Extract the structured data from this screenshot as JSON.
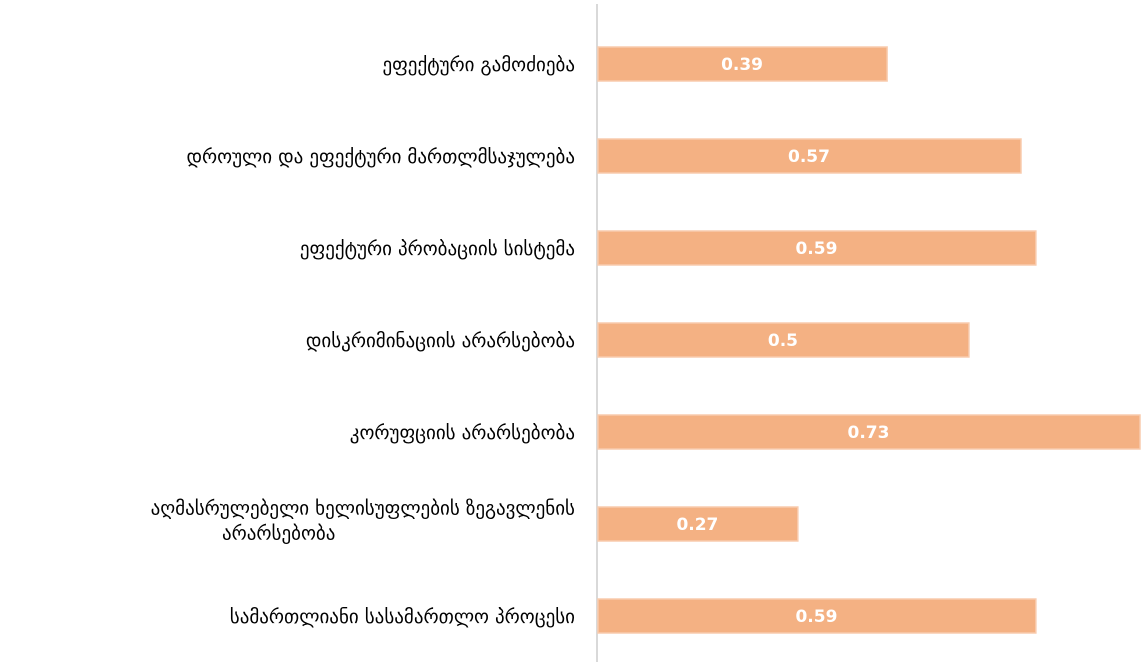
{
  "chart_data": {
    "type": "bar",
    "orientation": "horizontal",
    "categories": [
      "ეფექტური გამოძიება",
      "დროული და ეფექტური მართლმსაჯულება",
      "ეფექტური პრობაციის სისტემა",
      "დისკრიმინაციის არარსებობა",
      "კორუფციის არარსებობა",
      "აღმასრულებელი ხელისუფლების ზეგავლენის არარსებობა",
      "სამართლიანი სასამართლო პროცესი"
    ],
    "category_lines": [
      [
        "ეფექტური გამოძიება"
      ],
      [
        "დროული და ეფექტური მართლმსაჯულება"
      ],
      [
        "ეფექტური პრობაციის სისტემა"
      ],
      [
        "დისკრიმინაციის არარსებობა"
      ],
      [
        "კორუფციის არარსებობა"
      ],
      [
        "აღმასრულებელი ხელისუფლების ზეგავლენის",
        "არარსებობა"
      ],
      [
        "სამართლიანი სასამართლო პროცესი"
      ]
    ],
    "values": [
      0.39,
      0.57,
      0.59,
      0.5,
      0.73,
      0.27,
      0.59
    ],
    "value_labels": [
      "0.39",
      "0.57",
      "0.59",
      "0.5",
      "0.73",
      "0.27",
      "0.59"
    ],
    "xlim": [
      0,
      0.73
    ],
    "bar_color": "#F4B183",
    "bar_edge_color": "#F8CBAD",
    "axis_color": "#D9D9D9",
    "grid": false,
    "legend": "none"
  }
}
